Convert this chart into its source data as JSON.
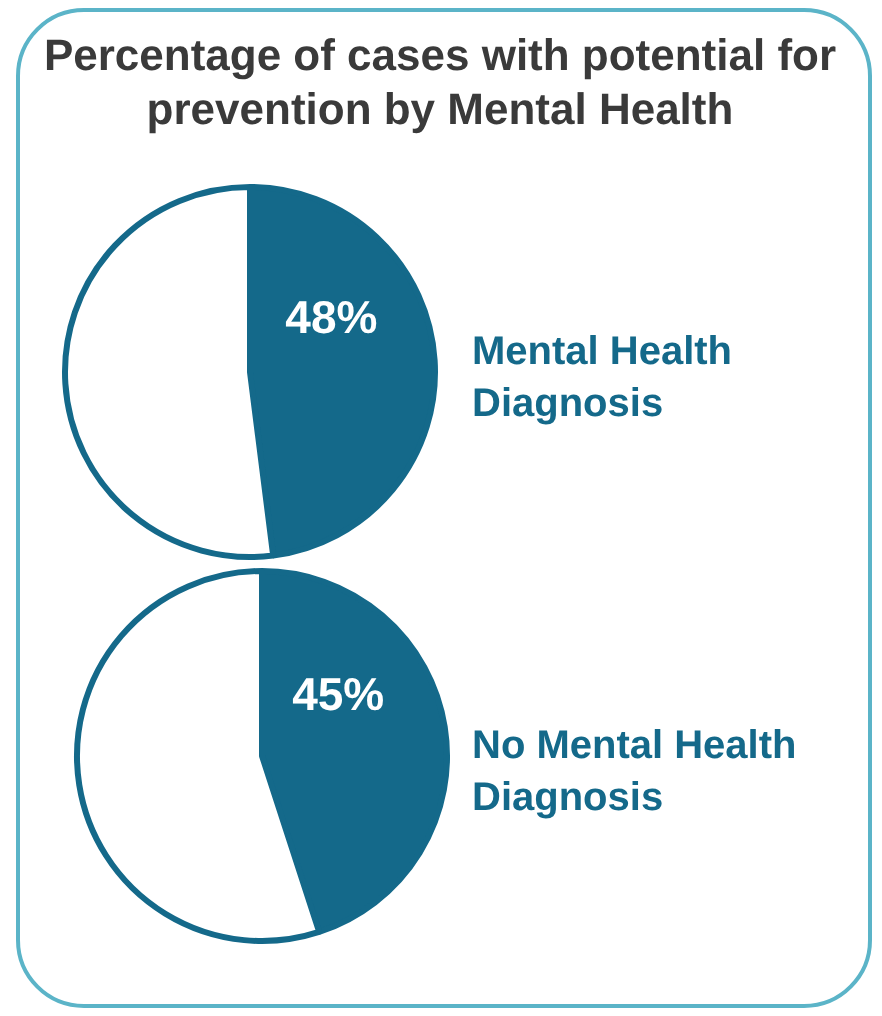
{
  "chart_data": [
    {
      "type": "pie",
      "title": "Percentage of cases with potential for prevention by Mental Health",
      "categories": [
        "Mental Health Diagnosis",
        null
      ],
      "values": [
        48,
        52
      ],
      "colors": [
        "#14698a",
        "#ffffff"
      ],
      "value_labels": [
        "48%",
        null
      ],
      "legend": false
    },
    {
      "type": "pie",
      "categories": [
        "No Mental Health Diagnosis",
        null
      ],
      "values": [
        45,
        55
      ],
      "colors": [
        "#14698a",
        "#ffffff"
      ],
      "value_labels": [
        "45%",
        null
      ],
      "legend": false
    }
  ]
}
